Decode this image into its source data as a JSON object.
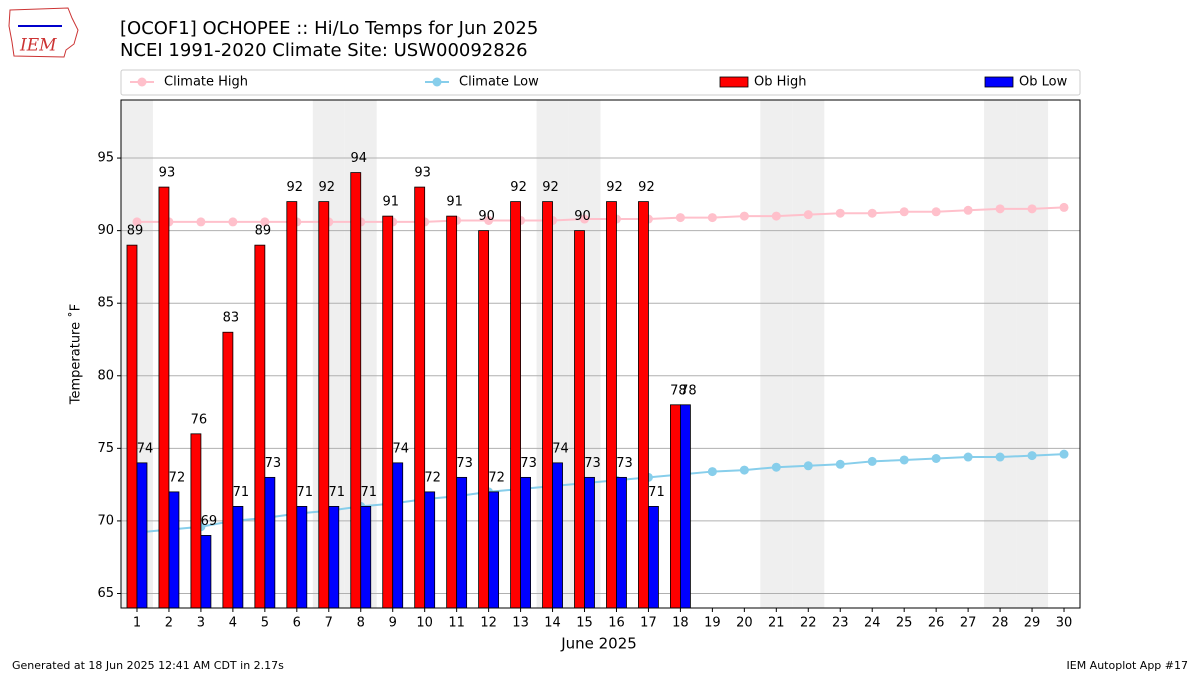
{
  "logo_text": "IEM",
  "footer": {
    "left": "Generated at 18 Jun 2025 12:41 AM CDT in 2.17s",
    "right": "IEM Autoplot App #17"
  },
  "chart_data": {
    "type": "bar",
    "title": "[OCOF1] OCHOPEE :: Hi/Lo Temps for Jun 2025",
    "subtitle": "NCEI 1991-2020 Climate Site: USW00092826",
    "xlabel": "June 2025",
    "ylabel": "Temperature ˚F",
    "x": [
      1,
      2,
      3,
      4,
      5,
      6,
      7,
      8,
      9,
      10,
      11,
      12,
      13,
      14,
      15,
      16,
      17,
      18,
      19,
      20,
      21,
      22,
      23,
      24,
      25,
      26,
      27,
      28,
      29,
      30
    ],
    "shaded_days": [
      1,
      7,
      8,
      14,
      15,
      21,
      22,
      28,
      29
    ],
    "xlim": [
      0.5,
      30.5
    ],
    "xticks": [
      1,
      2,
      3,
      4,
      5,
      6,
      7,
      8,
      9,
      10,
      11,
      12,
      13,
      14,
      15,
      16,
      17,
      18,
      19,
      20,
      21,
      22,
      23,
      24,
      25,
      26,
      27,
      28,
      29,
      30
    ],
    "ylim": [
      64,
      99
    ],
    "yticks": [
      65,
      70,
      75,
      80,
      85,
      90,
      95
    ],
    "grid": true,
    "series": [
      {
        "name": "Climate High",
        "type": "line",
        "color": "#ffc0cb",
        "values": [
          90.6,
          90.6,
          90.6,
          90.6,
          90.6,
          90.6,
          90.6,
          90.6,
          90.6,
          90.6,
          90.7,
          90.7,
          90.7,
          90.7,
          90.8,
          90.8,
          90.8,
          90.9,
          90.9,
          91.0,
          91.0,
          91.1,
          91.2,
          91.2,
          91.3,
          91.3,
          91.4,
          91.5,
          91.5,
          91.6
        ]
      },
      {
        "name": "Climate Low",
        "type": "line",
        "color": "#87ceeb",
        "values": [
          69.2,
          69.4,
          69.6,
          70.0,
          70.2,
          70.5,
          70.7,
          71.0,
          71.2,
          71.5,
          71.7,
          72.0,
          72.2,
          72.4,
          72.6,
          72.8,
          73.0,
          73.2,
          73.4,
          73.5,
          73.7,
          73.8,
          73.9,
          74.1,
          74.2,
          74.3,
          74.4,
          74.4,
          74.5,
          74.6
        ]
      },
      {
        "name": "Ob High",
        "type": "bar",
        "color": "#ff0000",
        "values": [
          89,
          93,
          76,
          83,
          89,
          92,
          92,
          94,
          91,
          93,
          91,
          90,
          92,
          92,
          90,
          92,
          92,
          78,
          null,
          null,
          null,
          null,
          null,
          null,
          null,
          null,
          null,
          null,
          null,
          null
        ]
      },
      {
        "name": "Ob Low",
        "type": "bar",
        "color": "#0000ff",
        "values": [
          74,
          72,
          69,
          71,
          73,
          71,
          71,
          71,
          74,
          72,
          73,
          72,
          73,
          74,
          73,
          73,
          71,
          78,
          null,
          null,
          null,
          null,
          null,
          null,
          null,
          null,
          null,
          null,
          null,
          null
        ]
      }
    ]
  }
}
